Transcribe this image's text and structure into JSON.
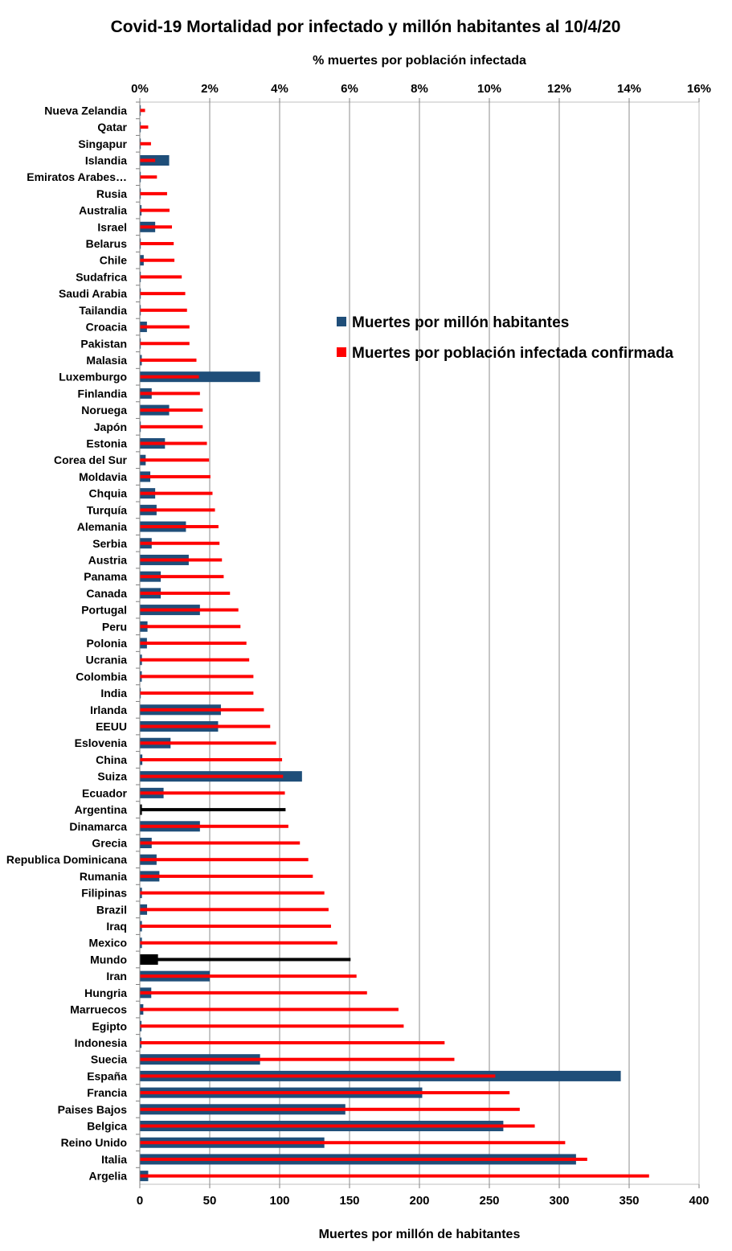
{
  "chart_data": {
    "type": "bar",
    "title": "Covid-19 Mortalidad por infectado y millón habitantes al 10/4/20",
    "xlabel_top": "% muertes por población infectada",
    "xlabel_bottom": "Muertes por millón de habitantes",
    "bottom_axis": {
      "range": [
        0,
        400
      ],
      "ticks": [
        "0",
        "50",
        "100",
        "150",
        "200",
        "250",
        "300",
        "350",
        "400"
      ]
    },
    "top_axis": {
      "range": [
        0,
        16
      ],
      "ticks": [
        "0%",
        "2%",
        "4%",
        "6%",
        "8%",
        "10%",
        "12%",
        "14%",
        "16%"
      ]
    },
    "grid": true,
    "legend_position": "right-upper",
    "categories": [
      "Nueva Zelandia",
      "Qatar",
      "Singapur",
      "Islandia",
      "Emiratos Arabes…",
      "Rusia",
      "Australia",
      "Israel",
      "Belarus",
      "Chile",
      "Sudafrica",
      "Saudi Arabia",
      "Tailandia",
      "Croacia",
      "Pakistan",
      "Malasia",
      "Luxemburgo",
      "Finlandia",
      "Noruega",
      "Japón",
      "Estonia",
      "Corea del Sur",
      "Moldavia",
      "Chquia",
      "Turquía",
      "Alemania",
      "Serbia",
      "Austria",
      "Panama",
      "Canada",
      "Portugal",
      "Peru",
      "Polonia",
      "Ucrania",
      "Colombia",
      "India",
      "Irlanda",
      "EEUU",
      "Eslovenia",
      "China",
      "Suiza",
      "Ecuador",
      "Argentina",
      "Dinamarca",
      "Grecia",
      "Republica Dominicana",
      "Rumania",
      "Filipinas",
      "Brazil",
      "Iraq",
      "Mexico",
      "Mundo",
      "Iran",
      "Hungria",
      "Marruecos",
      "Egipto",
      "Indonesia",
      "Suecia",
      "España",
      "Francia",
      "Paises Bajos",
      "Belgica",
      "Reino Unido",
      "Italia",
      "Argelia"
    ],
    "highlight_categories": [
      "Argentina",
      "Mundo"
    ],
    "series": [
      {
        "name": "Muertes por millón habitantes",
        "axis": "bottom",
        "color": "#1F4E79",
        "highlight_color": "#000000",
        "values": [
          0.3,
          0.3,
          0.5,
          21,
          0.3,
          0.2,
          1.2,
          11,
          0.5,
          2.8,
          0.3,
          0.6,
          0.2,
          5.1,
          0.3,
          1.4,
          86,
          8.5,
          21,
          0.5,
          18,
          4.2,
          7.5,
          11,
          12,
          33,
          8.5,
          35,
          15,
          15,
          43,
          5.5,
          5.1,
          1.5,
          1.4,
          0.3,
          58,
          56,
          22,
          1.8,
          116,
          17,
          1.5,
          43,
          8.5,
          12,
          14,
          1.5,
          5.2,
          1.5,
          1.5,
          13,
          50,
          8.2,
          2.5,
          1.2,
          1.2,
          86,
          344,
          202,
          147,
          260,
          132,
          312,
          6
        ]
      },
      {
        "name": "Muertes por población infectada confirmada",
        "axis": "top",
        "color": "#FF0000",
        "highlight_color": "#000000",
        "values": [
          0.15,
          0.24,
          0.32,
          0.44,
          0.49,
          0.78,
          0.85,
          0.92,
          0.97,
          0.99,
          1.2,
          1.3,
          1.35,
          1.42,
          1.42,
          1.62,
          1.69,
          1.72,
          1.8,
          1.8,
          1.92,
          1.98,
          2.02,
          2.08,
          2.15,
          2.25,
          2.28,
          2.35,
          2.4,
          2.58,
          2.82,
          2.88,
          3.05,
          3.13,
          3.25,
          3.25,
          3.55,
          3.73,
          3.9,
          4.07,
          4.1,
          4.15,
          4.17,
          4.25,
          4.58,
          4.82,
          4.95,
          5.28,
          5.4,
          5.47,
          5.65,
          6.03,
          6.2,
          6.5,
          7.4,
          7.55,
          8.72,
          9.0,
          10.17,
          10.58,
          10.87,
          11.3,
          12.17,
          12.8,
          14.57
        ]
      }
    ]
  }
}
